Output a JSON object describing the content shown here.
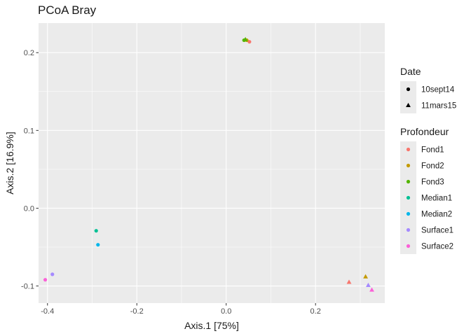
{
  "chart_data": {
    "type": "scatter",
    "title": "PCoA Bray",
    "xlabel": "Axis.1   [75%]",
    "ylabel": "Axis.2   [16.9%]",
    "xlim": [
      -0.42,
      0.355
    ],
    "ylim": [
      -0.122,
      0.238
    ],
    "x_ticks": [
      -0.4,
      -0.2,
      0.0,
      0.2
    ],
    "x_tick_labels": [
      "-0.4",
      "-0.2",
      "0.0",
      "0.2"
    ],
    "y_ticks": [
      -0.1,
      0.0,
      0.1,
      0.2
    ],
    "y_tick_labels": [
      "-0.1",
      "0.0",
      "0.1",
      "0.2"
    ],
    "grid": true,
    "background": "#ebebeb",
    "legend_position": "right",
    "legends": [
      {
        "title": "Date",
        "kind": "shape",
        "entries": [
          {
            "label": "10sept14",
            "shape": "circle"
          },
          {
            "label": "11mars15",
            "shape": "triangle"
          }
        ]
      },
      {
        "title": "Profondeur",
        "kind": "color",
        "entries": [
          {
            "label": "Fond1",
            "color": "#F8766D"
          },
          {
            "label": "Fond2",
            "color": "#C49A00"
          },
          {
            "label": "Fond3",
            "color": "#53B400"
          },
          {
            "label": "Median1",
            "color": "#00C094"
          },
          {
            "label": "Median2",
            "color": "#00B6EB"
          },
          {
            "label": "Surface1",
            "color": "#A58AFF"
          },
          {
            "label": "Surface2",
            "color": "#FB61D7"
          }
        ]
      }
    ],
    "points": [
      {
        "x": 0.052,
        "y": 0.214,
        "profondeur": "Fond1",
        "date": "10sept14"
      },
      {
        "x": 0.046,
        "y": 0.216,
        "profondeur": "Fond2",
        "date": "10sept14"
      },
      {
        "x": 0.04,
        "y": 0.216,
        "profondeur": "Fond3",
        "date": "10sept14"
      },
      {
        "x": -0.291,
        "y": -0.029,
        "profondeur": "Median1",
        "date": "10sept14"
      },
      {
        "x": -0.287,
        "y": -0.047,
        "profondeur": "Median2",
        "date": "10sept14"
      },
      {
        "x": -0.389,
        "y": -0.085,
        "profondeur": "Surface1",
        "date": "10sept14"
      },
      {
        "x": -0.405,
        "y": -0.092,
        "profondeur": "Surface2",
        "date": "10sept14"
      },
      {
        "x": 0.043,
        "y": 0.217,
        "profondeur": "Fond3",
        "date": "11mars15"
      },
      {
        "x": 0.275,
        "y": -0.095,
        "profondeur": "Fond1",
        "date": "11mars15"
      },
      {
        "x": 0.312,
        "y": -0.088,
        "profondeur": "Fond2",
        "date": "11mars15"
      },
      {
        "x": 0.318,
        "y": -0.099,
        "profondeur": "Surface1",
        "date": "11mars15"
      },
      {
        "x": 0.326,
        "y": -0.105,
        "profondeur": "Surface2",
        "date": "11mars15"
      }
    ]
  }
}
